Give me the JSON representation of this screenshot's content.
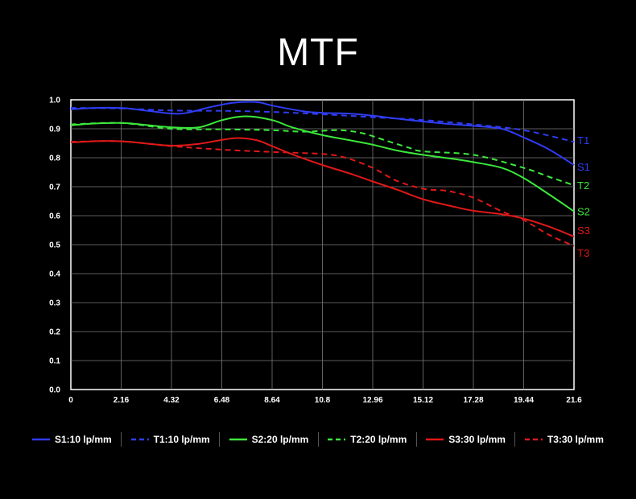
{
  "chart_data": {
    "type": "line",
    "title": "MTF",
    "xlim": [
      0,
      21.6
    ],
    "ylim": [
      0,
      1.0
    ],
    "x_ticks": [
      "0",
      "2.16",
      "4.32",
      "6.48",
      "8.64",
      "10.8",
      "12.96",
      "15.12",
      "17.28",
      "19.44",
      "21.6"
    ],
    "y_ticks": [
      "0.0",
      "0.1",
      "0.2",
      "0.3",
      "0.4",
      "0.5",
      "0.6",
      "0.7",
      "0.8",
      "0.9",
      "1.0"
    ],
    "grid": true,
    "series": [
      {
        "name": "S1:10 lp/mm",
        "end_label": "S1",
        "color": "#2f3cf2",
        "dashed": false,
        "points": [
          [
            0,
            0.967
          ],
          [
            1,
            0.972
          ],
          [
            2.16,
            0.972
          ],
          [
            3,
            0.965
          ],
          [
            4,
            0.955
          ],
          [
            4.5,
            0.952
          ],
          [
            5,
            0.955
          ],
          [
            6,
            0.975
          ],
          [
            7,
            0.99
          ],
          [
            8,
            0.992
          ],
          [
            8.64,
            0.98
          ],
          [
            10,
            0.96
          ],
          [
            10.8,
            0.955
          ],
          [
            12,
            0.952
          ],
          [
            12.96,
            0.945
          ],
          [
            14,
            0.935
          ],
          [
            15.12,
            0.925
          ],
          [
            16,
            0.918
          ],
          [
            17.28,
            0.91
          ],
          [
            18.5,
            0.9
          ],
          [
            19.44,
            0.87
          ],
          [
            20.5,
            0.83
          ],
          [
            21.6,
            0.775
          ]
        ]
      },
      {
        "name": "T1:10 lp/mm",
        "end_label": "T1",
        "color": "#2f3cf2",
        "dashed": true,
        "points": [
          [
            0,
            0.972
          ],
          [
            2.16,
            0.97
          ],
          [
            4.32,
            0.963
          ],
          [
            6.48,
            0.962
          ],
          [
            8.64,
            0.958
          ],
          [
            10.8,
            0.95
          ],
          [
            12.96,
            0.94
          ],
          [
            15.12,
            0.93
          ],
          [
            17.28,
            0.915
          ],
          [
            19.44,
            0.895
          ],
          [
            21.6,
            0.855
          ]
        ]
      },
      {
        "name": "S2:20 lp/mm",
        "end_label": "S2",
        "color": "#3ce83c",
        "dashed": false,
        "points": [
          [
            0,
            0.912
          ],
          [
            1,
            0.918
          ],
          [
            2.16,
            0.92
          ],
          [
            3,
            0.915
          ],
          [
            4.32,
            0.905
          ],
          [
            5.5,
            0.905
          ],
          [
            6.5,
            0.93
          ],
          [
            7.5,
            0.943
          ],
          [
            8.64,
            0.93
          ],
          [
            9.5,
            0.905
          ],
          [
            10.8,
            0.878
          ],
          [
            12,
            0.86
          ],
          [
            12.96,
            0.845
          ],
          [
            14,
            0.825
          ],
          [
            15.12,
            0.81
          ],
          [
            16.5,
            0.795
          ],
          [
            17.28,
            0.785
          ],
          [
            18.5,
            0.765
          ],
          [
            19.44,
            0.73
          ],
          [
            20.5,
            0.675
          ],
          [
            21.6,
            0.615
          ]
        ]
      },
      {
        "name": "T2:20 lp/mm",
        "end_label": "T2",
        "color": "#3ce83c",
        "dashed": true,
        "points": [
          [
            0,
            0.915
          ],
          [
            2.16,
            0.92
          ],
          [
            4.32,
            0.9
          ],
          [
            6.48,
            0.898
          ],
          [
            8.64,
            0.895
          ],
          [
            10,
            0.89
          ],
          [
            11.5,
            0.895
          ],
          [
            12.5,
            0.885
          ],
          [
            13.5,
            0.86
          ],
          [
            14.5,
            0.835
          ],
          [
            15.12,
            0.822
          ],
          [
            17.28,
            0.81
          ],
          [
            19.44,
            0.765
          ],
          [
            20.5,
            0.735
          ],
          [
            21.6,
            0.705
          ]
        ]
      },
      {
        "name": "S3:30 lp/mm",
        "end_label": "S3",
        "color": "#e01818",
        "dashed": false,
        "points": [
          [
            0,
            0.853
          ],
          [
            1.5,
            0.858
          ],
          [
            2.5,
            0.855
          ],
          [
            4.32,
            0.842
          ],
          [
            5.5,
            0.848
          ],
          [
            6.5,
            0.862
          ],
          [
            7.2,
            0.868
          ],
          [
            8,
            0.86
          ],
          [
            8.64,
            0.84
          ],
          [
            9.5,
            0.812
          ],
          [
            10.8,
            0.775
          ],
          [
            12,
            0.745
          ],
          [
            12.96,
            0.718
          ],
          [
            14,
            0.69
          ],
          [
            15.12,
            0.657
          ],
          [
            16.5,
            0.63
          ],
          [
            17.28,
            0.617
          ],
          [
            18.5,
            0.605
          ],
          [
            19.44,
            0.59
          ],
          [
            20.5,
            0.563
          ],
          [
            21.6,
            0.528
          ]
        ]
      },
      {
        "name": "T3:30 lp/mm",
        "end_label": "T3",
        "color": "#e01818",
        "dashed": true,
        "points": [
          [
            0,
            0.855
          ],
          [
            2.16,
            0.857
          ],
          [
            4.32,
            0.84
          ],
          [
            6.48,
            0.828
          ],
          [
            8.64,
            0.82
          ],
          [
            10.8,
            0.813
          ],
          [
            11.8,
            0.8
          ],
          [
            12.96,
            0.765
          ],
          [
            14,
            0.72
          ],
          [
            15.12,
            0.693
          ],
          [
            16.2,
            0.685
          ],
          [
            17.28,
            0.662
          ],
          [
            18.5,
            0.615
          ],
          [
            19.44,
            0.585
          ],
          [
            20.5,
            0.535
          ],
          [
            21.6,
            0.495
          ]
        ]
      }
    ]
  }
}
